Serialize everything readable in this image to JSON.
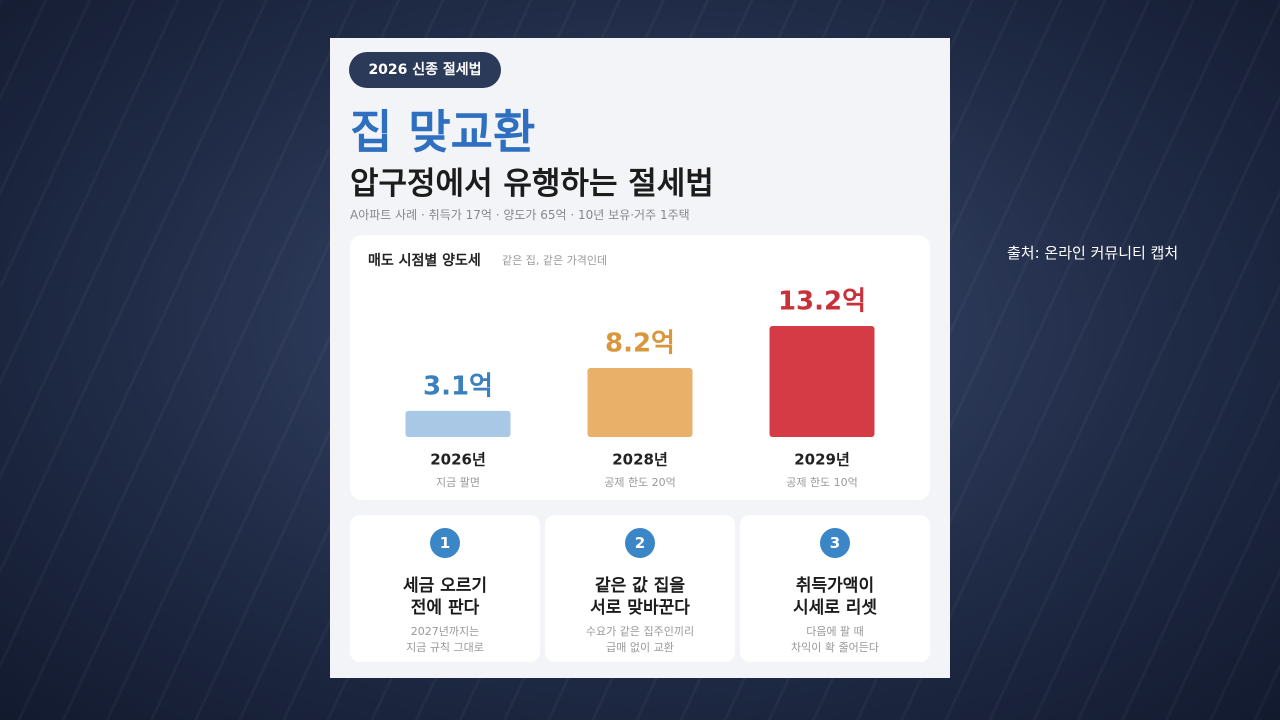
{
  "badge": "2026 신종 절세법",
  "title": "집 맞교환",
  "subtitle": "압구정에서 유행하는 절세법",
  "caption": "A아파트 사례 · 취득가 17억 · 양도가 65억 · 10년 보유·거주 1주택",
  "source": "출처: 온라인 커뮤니티 캡처",
  "chart_data": {
    "type": "bar",
    "title": "매도 시점별 양도세",
    "subtitle": "같은 집, 같은 가격인데",
    "categories": [
      "2026년",
      "2028년",
      "2029년"
    ],
    "notes": [
      "지금 팔면",
      "공제 한도 20억",
      "공제 한도 10억"
    ],
    "values": [
      3.1,
      8.2,
      13.2
    ],
    "value_labels": [
      "3.1억",
      "8.2억",
      "13.2억"
    ],
    "colors": [
      "#a9c8e6",
      "#e8b068",
      "#d43b45"
    ],
    "label_colors": [
      "#3a7fc0",
      "#d8973c",
      "#c8303a"
    ]
  },
  "steps": [
    {
      "number": 1,
      "heading": [
        "세금 오르기",
        "전에 판다"
      ],
      "desc": [
        "2027년까지는",
        "지금 규칙 그대로"
      ]
    },
    {
      "number": 2,
      "heading": [
        "같은 값 집을",
        "서로 맞바꾼다"
      ],
      "desc": [
        "수요가 같은 집주인끼리",
        "급매 없이 교환"
      ]
    },
    {
      "number": 3,
      "heading": [
        "취득가액이",
        "시세로 리셋"
      ],
      "desc": [
        "다음에 팔 때",
        "차익이 확 줄어든다"
      ]
    }
  ]
}
